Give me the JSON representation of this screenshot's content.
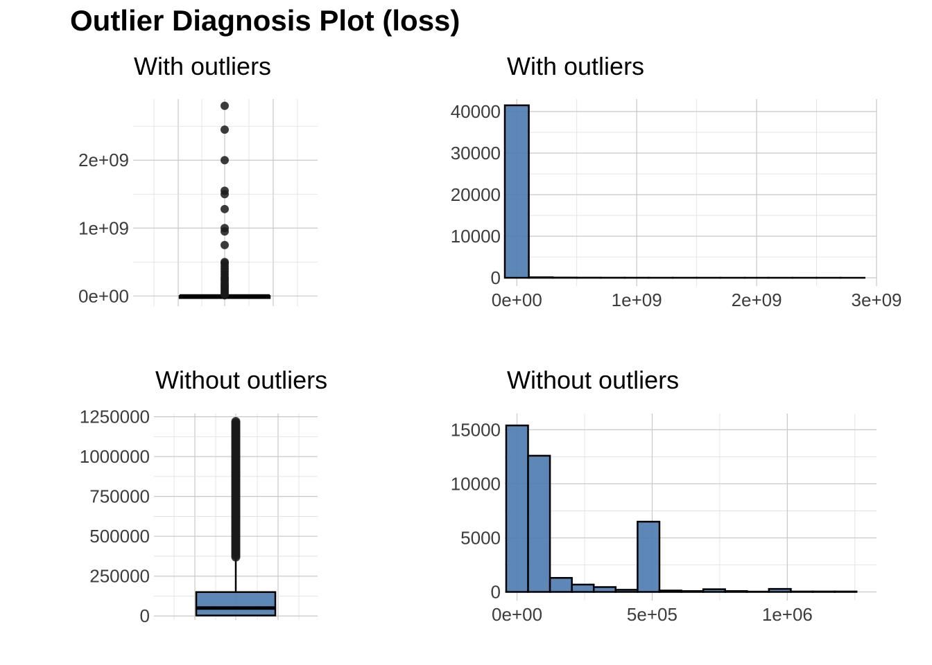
{
  "title": "Outlier Diagnosis Plot (loss)",
  "colors": {
    "fill": "#4f7db1",
    "outline": "#000000",
    "point": "#1a1a1a",
    "grid_major": "#c8c8c8",
    "grid_minor": "#dedede",
    "background": "#ffffff"
  },
  "chart_data": [
    {
      "id": "box_with",
      "type": "boxplot",
      "title": "With outliers",
      "ylim": [
        -150000000,
        2900000000
      ],
      "y_ticks": [
        0,
        1000000000,
        2000000000
      ],
      "y_tick_labels": [
        "0e+00",
        "1e+09",
        "2e+09"
      ],
      "box": {
        "lower_whisker": 0,
        "q1": 8000,
        "median": 48000,
        "q3": 150000,
        "upper_whisker": 370000
      },
      "outliers": [
        2800000000,
        2450000000,
        2000000000,
        1550000000,
        1500000000,
        1280000000,
        1000000000,
        950000000,
        750000000,
        500000000,
        480000000,
        440000000,
        400000000,
        360000000,
        320000000,
        280000000,
        250000000,
        220000000,
        180000000,
        150000000,
        120000000,
        90000000,
        60000000,
        30000000,
        10000000
      ]
    },
    {
      "id": "hist_with",
      "type": "bar",
      "title": "With outliers",
      "xlim": [
        -100000000,
        3000000000
      ],
      "ylim": [
        -2000,
        43000
      ],
      "x_ticks": [
        0,
        1000000000,
        2000000000,
        3000000000
      ],
      "x_tick_labels": [
        "0e+00",
        "1e+09",
        "2e+09",
        "3e+09"
      ],
      "y_ticks": [
        0,
        10000,
        20000,
        30000,
        40000
      ],
      "y_tick_labels": [
        "0",
        "10000",
        "20000",
        "30000",
        "40000"
      ],
      "bin_start": -100000000,
      "bin_width": 200000000,
      "values": [
        41500,
        120,
        50,
        30,
        20,
        15,
        10,
        10,
        8,
        6,
        5,
        4,
        3,
        3,
        2
      ]
    },
    {
      "id": "box_without",
      "type": "boxplot",
      "title": "Without outliers",
      "ylim": [
        -25000,
        1270000
      ],
      "y_ticks": [
        0,
        250000,
        500000,
        750000,
        1000000,
        1250000
      ],
      "y_tick_labels": [
        "0",
        "250000",
        "500000",
        "750000",
        "1000000",
        "1250000"
      ],
      "box": {
        "lower_whisker": 0,
        "q1": 3000,
        "median": 50000,
        "q3": 150000,
        "upper_whisker": 370000
      },
      "outlier_range": [
        370000,
        1220000
      ]
    },
    {
      "id": "hist_without",
      "type": "bar",
      "title": "Without outliers",
      "xlim": [
        -45000,
        1330000
      ],
      "ylim": [
        -800,
        16500
      ],
      "x_ticks": [
        0,
        500000,
        1000000
      ],
      "x_tick_labels": [
        "0e+00",
        "5e+05",
        "1e+06"
      ],
      "y_ticks": [
        0,
        5000,
        10000,
        15000
      ],
      "y_tick_labels": [
        "0",
        "5000",
        "10000",
        "15000"
      ],
      "bin_start": -40000,
      "bin_width": 81000,
      "values": [
        15400,
        12600,
        1300,
        680,
        450,
        200,
        6500,
        130,
        80,
        250,
        80,
        30,
        280,
        40,
        40,
        40
      ]
    }
  ]
}
